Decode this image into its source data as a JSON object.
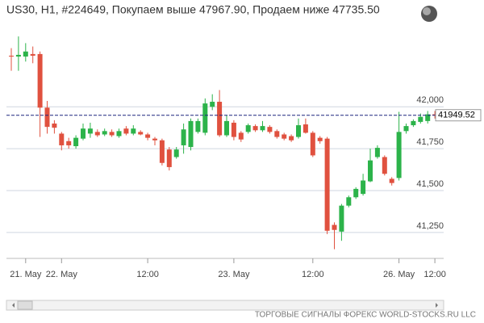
{
  "chart_data": {
    "type": "candlestick",
    "title": "US30, H1, #224649, Покупаем выше 47967.90, Продаем ниже 47735.50",
    "footer": "ТОРГОВЫЕ СИГНАЛЫ ФОРЕКС WORLD-STOCKS.RU LLC",
    "categories": [
      null,
      null,
      "21. May",
      null,
      null,
      null,
      null,
      "22. May",
      null,
      null,
      null,
      null,
      null,
      null,
      null,
      null,
      null,
      null,
      null,
      "12:00",
      null,
      null,
      null,
      null,
      null,
      null,
      null,
      null,
      null,
      null,
      null,
      "23. May",
      null,
      null,
      null,
      null,
      null,
      null,
      null,
      null,
      null,
      null,
      "12:00",
      null,
      null,
      null,
      null,
      null,
      null,
      null,
      null,
      null,
      null,
      null,
      "26. May",
      null,
      null,
      null,
      null,
      "12:00"
    ],
    "open": [
      42305,
      42300,
      42300,
      42315,
      42315,
      41995,
      41900,
      41840,
      41795,
      41765,
      41810,
      41840,
      41850,
      41835,
      41850,
      41825,
      41870,
      41840,
      41850,
      41835,
      41810,
      41800,
      41745,
      41700,
      41770,
      41760,
      41850,
      41845,
      42000,
      42030,
      41830,
      41905,
      41845,
      41850,
      41885,
      41860,
      41880,
      41855,
      41835,
      41825,
      41820,
      41895,
      41845,
      41815,
      41810,
      41295,
      41255,
      41410,
      41460,
      41480,
      41555,
      41700,
      41700,
      41570,
      41575,
      41855,
      41890,
      41910,
      41915,
      41955
    ],
    "high": [
      42350,
      42420,
      42380,
      42360,
      42330,
      42035,
      41920,
      41850,
      41815,
      41830,
      41900,
      41905,
      41865,
      41870,
      41865,
      41870,
      41885,
      41890,
      41860,
      41845,
      41820,
      41810,
      41760,
      41760,
      41900,
      41930,
      41930,
      42050,
      42075,
      42100,
      41950,
      41920,
      41855,
      41900,
      41895,
      41915,
      41890,
      41865,
      41845,
      41835,
      41930,
      41930,
      41855,
      41825,
      41820,
      41310,
      41420,
      41470,
      41520,
      41600,
      41750,
      41770,
      41710,
      41580,
      41970,
      41900,
      41925,
      41960,
      41975,
      41975
    ],
    "low": [
      42215,
      42215,
      42270,
      42260,
      41820,
      41840,
      41840,
      41740,
      41750,
      41750,
      41800,
      41815,
      41820,
      41825,
      41820,
      41815,
      41830,
      41830,
      41830,
      41800,
      41770,
      41650,
      41620,
      41690,
      41720,
      41740,
      41840,
      41830,
      41980,
      41820,
      41820,
      41800,
      41790,
      41840,
      41850,
      41850,
      41840,
      41810,
      41800,
      41790,
      41810,
      41840,
      41700,
      41780,
      41240,
      41150,
      41200,
      41400,
      41450,
      41470,
      41550,
      41690,
      41590,
      41530,
      41560,
      41840,
      41880,
      41900,
      41900,
      41930
    ],
    "close": [
      42300,
      42310,
      42330,
      42305,
      41995,
      41880,
      41875,
      41770,
      41770,
      41815,
      41870,
      41870,
      41830,
      41855,
      41830,
      41855,
      41840,
      41870,
      41835,
      41815,
      41800,
      41665,
      41640,
      41745,
      41865,
      41915,
      41915,
      42020,
      42030,
      41830,
      41915,
      41820,
      41805,
      41890,
      41860,
      41885,
      41850,
      41820,
      41810,
      41800,
      41890,
      41845,
      41710,
      41795,
      41260,
      41265,
      41410,
      41460,
      41510,
      41560,
      41680,
      41755,
      41600,
      41545,
      41850,
      41885,
      41915,
      41940,
      41955,
      41949.52
    ],
    "up_color": "#2cb34a",
    "down_color": "#e0513f",
    "current_price": 41949.52,
    "current_price_color": "#1a237e",
    "ylim": [
      41095,
      42517
    ],
    "yticks": [
      {
        "value": 41250,
        "label": "41,250"
      },
      {
        "value": 41500,
        "label": "41,500"
      },
      {
        "value": 41750,
        "label": "41,750"
      },
      {
        "value": 42000,
        "label": "42,000"
      }
    ],
    "grid": true
  }
}
